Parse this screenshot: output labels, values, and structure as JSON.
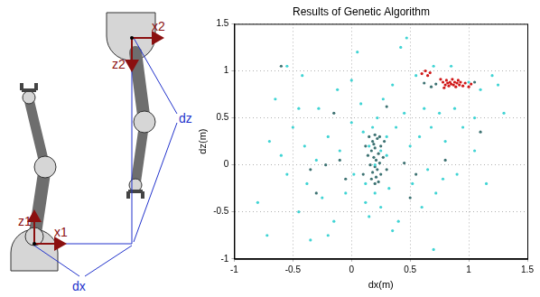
{
  "diagram": {
    "labels": {
      "x1": "x1",
      "z1": "z1",
      "x2": "x2",
      "z2": "z2",
      "dx": "dx",
      "dz": "dz"
    }
  },
  "chart_data": {
    "type": "scatter",
    "title": "Results of Genetic Algorithm",
    "x_label": "dx(m)",
    "y_label": "dz(m)",
    "xlim": [
      -1,
      1.5
    ],
    "ylim": [
      -1,
      1.5
    ],
    "xticks": [
      -1,
      -0.5,
      0,
      0.5,
      1,
      1.5
    ],
    "yticks": [
      -1,
      -0.5,
      0,
      0.5,
      1,
      1.5
    ],
    "grid": true,
    "marker": "circle",
    "series": [
      {
        "color": "#40d4d4",
        "x": [
          -0.8,
          -0.72,
          -0.7,
          -0.65,
          -0.6,
          -0.55,
          -0.5,
          -0.45,
          -0.42,
          -0.4,
          -0.38,
          -0.3,
          -0.28,
          -0.25,
          -0.2,
          -0.15,
          -0.12,
          -0.1,
          -0.05,
          0.0,
          0.02,
          0.05,
          0.08,
          0.1,
          0.12,
          0.15,
          0.18,
          0.2,
          0.22,
          0.25,
          0.27,
          0.3,
          0.32,
          0.35,
          0.38,
          0.4,
          0.42,
          0.45,
          0.47,
          0.5,
          0.52,
          0.55,
          0.58,
          0.6,
          0.62,
          0.65,
          0.68,
          0.7,
          0.72,
          0.75,
          0.78,
          0.8,
          0.85,
          0.88,
          0.9,
          0.95,
          1.0,
          1.05,
          1.1,
          1.15,
          1.2,
          1.25,
          1.3,
          -0.35,
          0.7,
          0.35,
          -0.2,
          0.15,
          0.2,
          0.25,
          0.12,
          0.3,
          -0.45,
          -0.55,
          1.05,
          0.0
        ],
        "values": [
          -0.4,
          -0.75,
          0.25,
          0.7,
          0.1,
          -0.1,
          0.4,
          -0.5,
          0.95,
          0.2,
          -0.2,
          0.05,
          0.6,
          -0.35,
          0.3,
          -0.6,
          0.8,
          0.15,
          -0.3,
          0.45,
          -0.1,
          1.2,
          0.65,
          0.35,
          -0.4,
          -0.55,
          0.4,
          -0.3,
          0.5,
          -0.45,
          0.7,
          0.1,
          -0.25,
          0.85,
          0.4,
          -0.6,
          1.25,
          0.55,
          1.35,
          0.2,
          -0.2,
          0.95,
          0.3,
          -0.45,
          0.6,
          -0.05,
          0.4,
          1.05,
          -0.3,
          0.55,
          -0.15,
          0.25,
          1.05,
          0.6,
          -0.1,
          0.4,
          0.88,
          0.15,
          0.8,
          -0.2,
          0.95,
          0.85,
          0.55,
          -0.8,
          -0.9,
          -0.7,
          -0.75,
          0.2,
          0.0,
          0.15,
          -0.2,
          0.3,
          0.6,
          1.05,
          0.5,
          0.9
        ]
      },
      {
        "color": "#3d7272",
        "x": [
          0.15,
          0.18,
          0.2,
          0.22,
          0.25,
          0.17,
          0.2,
          0.23,
          0.19,
          0.21,
          0.24,
          0.16,
          0.2,
          0.22,
          0.18,
          0.25,
          0.21,
          0.17,
          0.23,
          0.2,
          0.14,
          0.27,
          0.28,
          0.12,
          0.3,
          0.1,
          0.19,
          0.24,
          -0.1,
          -0.22,
          -0.35,
          -0.05,
          0.45,
          0.55,
          0.62,
          0.68,
          0.72,
          1.05,
          0.3,
          -0.15,
          -0.6,
          1.1,
          0.5,
          0.8,
          -0.3
        ],
        "values": [
          0.3,
          0.25,
          0.32,
          0.28,
          0.2,
          0.15,
          0.18,
          0.12,
          0.08,
          0.05,
          0.02,
          0.0,
          -0.02,
          -0.05,
          -0.08,
          -0.1,
          -0.13,
          -0.15,
          -0.18,
          -0.2,
          0.1,
          0.08,
          0.25,
          0.2,
          -0.05,
          -0.1,
          0.22,
          0.3,
          0.05,
          0.0,
          -0.05,
          -0.15,
          0.02,
          -0.1,
          0.87,
          0.83,
          0.86,
          0.88,
          0.62,
          0.55,
          1.05,
          0.35,
          -0.35,
          0.05,
          -0.3
        ]
      },
      {
        "color": "#d01818",
        "x": [
          0.6,
          0.63,
          0.65,
          0.67,
          0.78,
          0.8,
          0.81,
          0.82,
          0.83,
          0.84,
          0.85,
          0.86,
          0.87,
          0.88,
          0.89,
          0.9,
          0.91,
          0.92,
          0.93,
          0.95,
          0.97,
          1.0,
          1.02,
          0.76,
          0.79
        ],
        "values": [
          0.97,
          1.0,
          0.95,
          0.98,
          0.88,
          0.85,
          0.9,
          0.87,
          0.84,
          0.88,
          0.86,
          0.91,
          0.85,
          0.88,
          0.83,
          0.87,
          0.9,
          0.85,
          0.88,
          0.84,
          0.87,
          0.83,
          0.86,
          0.91,
          0.82
        ]
      }
    ]
  }
}
